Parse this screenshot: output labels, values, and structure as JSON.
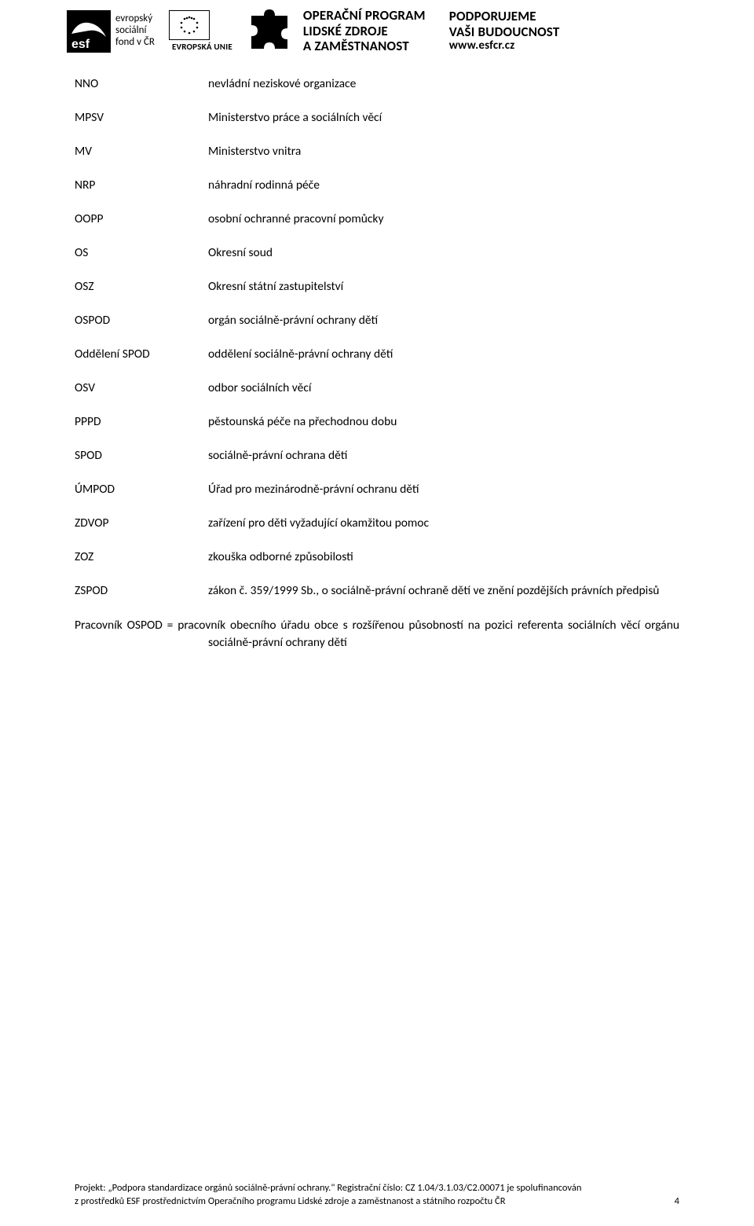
{
  "header": {
    "esf_lines": [
      "evropský",
      "sociální",
      "fond v ČR"
    ],
    "eu_label": "EVROPSKÁ UNIE",
    "program_lines": [
      "OPERAČNÍ PROGRAM",
      "LIDSKÉ ZDROJE",
      "A ZAMĚSTNANOST"
    ],
    "support_line1": "PODPORUJEME",
    "support_line2": "VAŠI BUDOUCNOST",
    "support_url": "www.esfcr.cz"
  },
  "abbreviations": [
    {
      "term": "NNO",
      "def": "nevládní neziskové organizace"
    },
    {
      "term": "MPSV",
      "def": "Ministerstvo práce a sociálních věcí"
    },
    {
      "term": "MV",
      "def": "Ministerstvo vnitra"
    },
    {
      "term": "NRP",
      "def": "náhradní rodinná péče"
    },
    {
      "term": "OOPP",
      "def": "osobní ochranné pracovní pomůcky"
    },
    {
      "term": "OS",
      "def": "Okresní soud"
    },
    {
      "term": "OSZ",
      "def": "Okresní státní zastupitelství"
    },
    {
      "term": "OSPOD",
      "def": "orgán sociálně-právní ochrany dětí"
    },
    {
      "term": "Oddělení SPOD",
      "def": "oddělení sociálně-právní ochrany dětí"
    },
    {
      "term": "OSV",
      "def": "odbor sociálních věcí"
    },
    {
      "term": "PPPD",
      "def": "pěstounská péče na přechodnou dobu"
    },
    {
      "term": "SPOD",
      "def": "sociálně-právní ochrana dětí"
    },
    {
      "term": "ÚMPOD",
      "def": "Úřad pro mezinárodně-právní ochranu dětí"
    },
    {
      "term": "ZDVOP",
      "def": "zařízení pro děti vyžadující okamžitou pomoc"
    },
    {
      "term": "ZOZ",
      "def": "zkouška odborné způsobilosti"
    },
    {
      "term": "ZSPOD",
      "def": "zákon č. 359/1999 Sb., o sociálně-právní ochraně dětí ve znění pozdějších právních předpisů",
      "justify": true
    }
  ],
  "paragraph": "Pracovník OSPOD = pracovník obecního úřadu obce s rozšířenou působností na pozici referenta sociálních věcí orgánu sociálně-právní ochrany dětí",
  "footer": {
    "line1": "Projekt: „Podpora standardizace orgánů sociálně-právní ochrany.\" Registrační číslo: CZ 1.04/3.1.03/C2.00071 je spolufinancován",
    "line2": "z prostředků ESF prostřednictvím Operačního programu Lidské zdroje a zaměstnanost a státního rozpočtu ČR",
    "page": "4"
  },
  "colors": {
    "text": "#000000",
    "background": "#ffffff"
  }
}
